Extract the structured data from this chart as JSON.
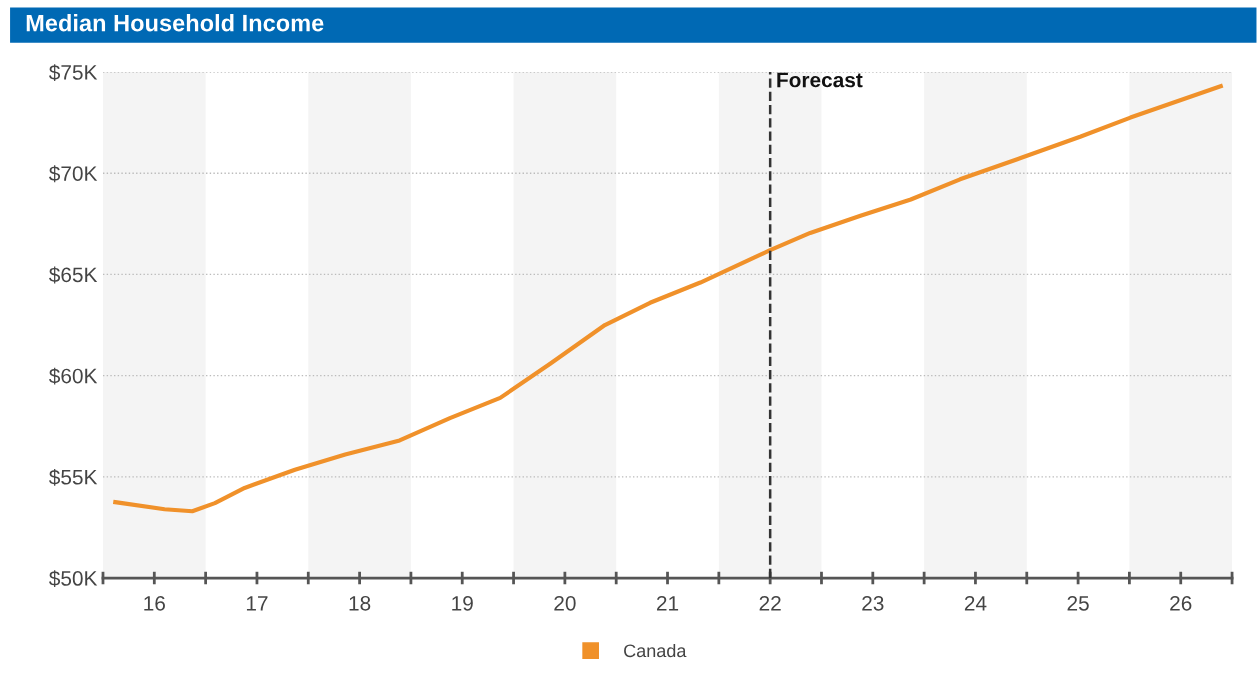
{
  "chart_data": {
    "type": "line",
    "title": "Median Household Income",
    "x": [
      15.62,
      16.1,
      16.37,
      16.59,
      16.88,
      17.37,
      17.86,
      18.39,
      18.88,
      19.37,
      19.86,
      20.39,
      20.83,
      21.32,
      22.0,
      22.39,
      22.88,
      23.37,
      23.85,
      24.44,
      25.02,
      25.51,
      26.39
    ],
    "series": [
      {
        "name": "Canada",
        "color": "#f0912a",
        "values": [
          53.75,
          53.4,
          53.3,
          53.7,
          54.45,
          55.35,
          56.1,
          56.8,
          57.9,
          58.9,
          60.6,
          62.5,
          63.6,
          64.6,
          66.2,
          67.05,
          67.9,
          68.7,
          69.7,
          70.75,
          71.8,
          72.75,
          74.3
        ]
      }
    ],
    "xlim": [
      15.5,
      26.5
    ],
    "xticks": [
      {
        "value": 15.5,
        "label": null
      },
      16,
      {
        "value": 16.5,
        "label": null
      },
      17,
      {
        "value": 17.5,
        "label": null
      },
      18,
      {
        "value": 18.5,
        "label": null
      },
      19,
      {
        "value": 19.5,
        "label": null
      },
      20,
      {
        "value": 20.5,
        "label": null
      },
      21,
      {
        "value": 21.5,
        "label": null
      },
      22,
      {
        "value": 22.5,
        "label": null
      },
      23,
      {
        "value": 23.5,
        "label": null
      },
      24,
      {
        "value": 24.5,
        "label": null
      },
      25,
      {
        "value": 25.5,
        "label": null
      },
      26,
      {
        "value": 26.5,
        "label": null
      }
    ],
    "ylim": [
      50,
      75
    ],
    "yticks": [
      {
        "value": 50,
        "label": "$50K"
      },
      {
        "value": 55,
        "label": "$55K"
      },
      {
        "value": 60,
        "label": "$60K"
      },
      {
        "value": 65,
        "label": "$65K"
      },
      {
        "value": 70,
        "label": "$70K"
      },
      {
        "value": 75,
        "label": "$75K"
      }
    ],
    "grid": "y",
    "legend": "bottom",
    "marker": "none",
    "line_style": "solid",
    "ref_lines": [
      {
        "axis": "x",
        "value": 22,
        "label": "Forecast",
        "color": "#333333",
        "line_style": "dashed"
      }
    ],
    "bands": [
      {
        "axis": "x",
        "from": 15.5,
        "to": 16.5,
        "color": "#f4f4f4"
      },
      {
        "axis": "x",
        "from": 17.5,
        "to": 18.5,
        "color": "#f4f4f4"
      },
      {
        "axis": "x",
        "from": 19.5,
        "to": 20.5,
        "color": "#f4f4f4"
      },
      {
        "axis": "x",
        "from": 21.5,
        "to": 22.5,
        "color": "#f4f4f4"
      },
      {
        "axis": "x",
        "from": 23.5,
        "to": 24.5,
        "color": "#f4f4f4"
      },
      {
        "axis": "x",
        "from": 25.5,
        "to": 26.5,
        "color": "#f4f4f4"
      }
    ]
  }
}
